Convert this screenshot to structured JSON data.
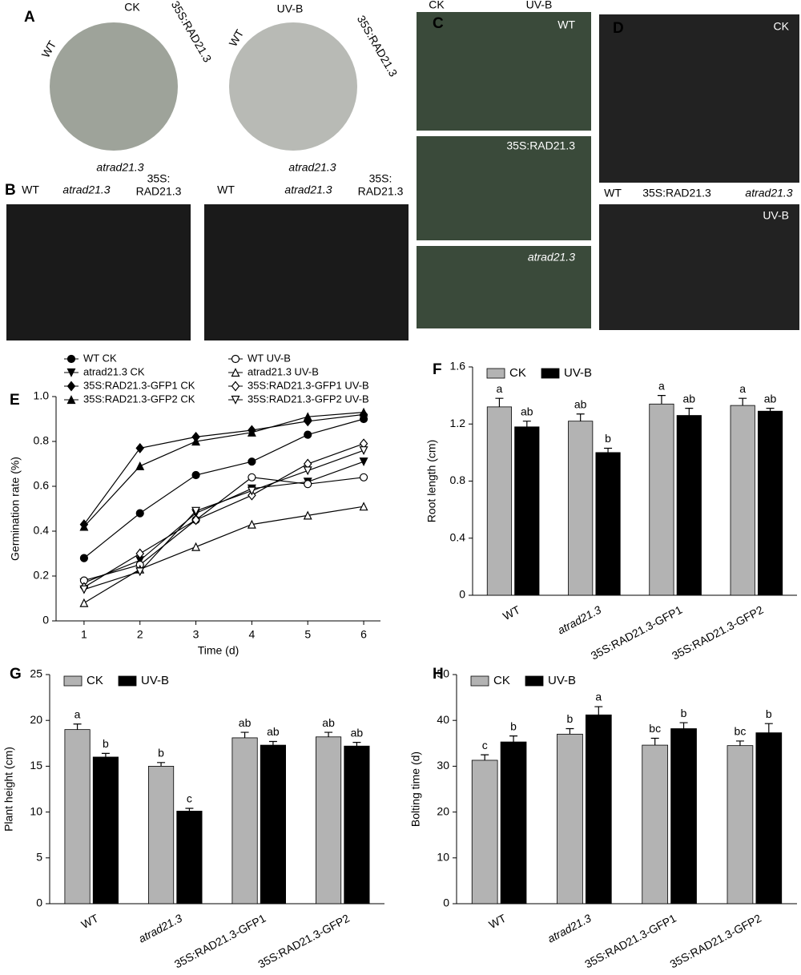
{
  "photo_panels": [
    {
      "label": "A",
      "texts": [
        "CK",
        "WT",
        "35S:RAD21.3",
        "atrad21.3",
        "UV-B",
        "WT",
        "35S:RAD21.3",
        "atrad21.3"
      ]
    },
    {
      "label": "B",
      "texts": [
        "WT",
        "atrad21.3",
        "35S:",
        "RAD21.3",
        "WT",
        "atrad21.3",
        "35S:",
        "RAD21.3"
      ]
    },
    {
      "label": "C",
      "texts": [
        "CK",
        "UV-B",
        "WT",
        "35S:RAD21.3",
        "atrad21.3"
      ]
    },
    {
      "label": "D",
      "texts": [
        "CK",
        "WT",
        "35S:RAD21.3",
        "atrad21.3",
        "UV-B"
      ]
    }
  ],
  "chart_data": [
    {
      "type": "line",
      "panel_label": "E",
      "x_label": "Time (d)",
      "y_label": "Germination rate (%)",
      "x": [
        1,
        2,
        3,
        4,
        5,
        6
      ],
      "xlim": [
        0.5,
        6.3
      ],
      "xticks": [
        1,
        2,
        3,
        4,
        5,
        6
      ],
      "ylim": [
        0,
        1
      ],
      "yticks": [
        0,
        0.2,
        0.4,
        0.6,
        0.8,
        {
          "value": 1,
          "label": "1.0"
        }
      ],
      "series": [
        {
          "name": "WT  CK",
          "color": "#000000",
          "marker": "circle",
          "filled": true,
          "values": [
            0.28,
            0.48,
            0.65,
            0.71,
            0.83,
            0.9
          ]
        },
        {
          "name": "atrad21.3 CK",
          "color": "#000000",
          "marker": "triangle-down",
          "filled": true,
          "values": [
            0.17,
            0.27,
            0.48,
            0.59,
            0.62,
            0.71
          ]
        },
        {
          "name": "35S:RAD21.3-GFP1 CK",
          "color": "#000000",
          "marker": "diamond",
          "filled": true,
          "values": [
            0.43,
            0.77,
            0.82,
            0.85,
            0.89,
            0.92
          ]
        },
        {
          "name": "35S:RAD21.3-GFP2 CK",
          "color": "#000000",
          "marker": "triangle-up",
          "filled": true,
          "values": [
            0.42,
            0.69,
            0.8,
            0.84,
            0.91,
            0.93
          ]
        },
        {
          "name": "WT   UV-B",
          "color": "#000000",
          "marker": "circle",
          "filled": false,
          "values": [
            0.18,
            0.25,
            0.45,
            0.64,
            0.61,
            0.64
          ]
        },
        {
          "name": "atrad21.3 UV-B",
          "color": "#000000",
          "marker": "triangle-up",
          "filled": false,
          "values": [
            0.08,
            0.23,
            0.33,
            0.43,
            0.47,
            0.51
          ]
        },
        {
          "name": "35S:RAD21.3-GFP1 UV-B",
          "color": "#000000",
          "marker": "diamond",
          "filled": false,
          "values": [
            0.15,
            0.3,
            0.45,
            0.56,
            0.7,
            0.79
          ]
        },
        {
          "name": "35S:RAD21.3-GFP2 UV-B",
          "color": "#000000",
          "marker": "triangle-down",
          "filled": false,
          "values": [
            0.14,
            0.22,
            0.49,
            0.58,
            0.67,
            0.76
          ]
        }
      ]
    },
    {
      "type": "bar",
      "panel_label": "F",
      "y_label": "Root  length (cm)",
      "categories": [
        "WT",
        "atrad21.3",
        "35S:RAD21.3-GFP1",
        "35S:RAD21.3-GFP2"
      ],
      "ylim": [
        0,
        1.6
      ],
      "yticks": [
        0,
        0.4,
        0.8,
        1.2,
        1.6
      ],
      "series": [
        {
          "name": "CK",
          "color": "#b3b3b3",
          "values": [
            1.32,
            1.22,
            1.34,
            1.33
          ],
          "errors": [
            0.06,
            0.05,
            0.06,
            0.05
          ],
          "labels": [
            "a",
            "ab",
            "a",
            "a"
          ]
        },
        {
          "name": "UV-B",
          "color": "#000000",
          "values": [
            1.18,
            1.0,
            1.26,
            1.29
          ],
          "errors": [
            0.04,
            0.03,
            0.05,
            0.02
          ],
          "labels": [
            "ab",
            "b",
            "ab",
            "ab"
          ]
        }
      ]
    },
    {
      "type": "bar",
      "panel_label": "G",
      "y_label": "Plant height (cm)",
      "categories": [
        "WT",
        "atrad21.3",
        "35S:RAD21.3-GFP1",
        "35S:RAD21.3-GFP2"
      ],
      "ylim": [
        0,
        25
      ],
      "yticks": [
        0,
        5,
        10,
        15,
        20,
        25
      ],
      "series": [
        {
          "name": "CK",
          "color": "#b3b3b3",
          "values": [
            19,
            15,
            18.1,
            18.2
          ],
          "errors": [
            0.6,
            0.4,
            0.6,
            0.5
          ],
          "labels": [
            "a",
            "b",
            "ab",
            "ab"
          ]
        },
        {
          "name": "UV-B",
          "color": "#000000",
          "values": [
            16,
            10.1,
            17.3,
            17.2
          ],
          "errors": [
            0.4,
            0.3,
            0.4,
            0.4
          ],
          "labels": [
            "b",
            "c",
            "ab",
            "ab"
          ]
        }
      ]
    },
    {
      "type": "bar",
      "panel_label": "H",
      "y_label": "Bolting time (d)",
      "categories": [
        "WT",
        "atrad21.3",
        "35S:RAD21.3-GFP1",
        "35S:RAD21.3-GFP2"
      ],
      "ylim": [
        0,
        50
      ],
      "yticks": [
        0,
        10,
        20,
        30,
        40,
        50
      ],
      "series": [
        {
          "name": "CK",
          "color": "#b3b3b3",
          "values": [
            31.3,
            37,
            34.6,
            34.5
          ],
          "errors": [
            1.2,
            1.2,
            1.5,
            1.0
          ],
          "labels": [
            "c",
            "b",
            "bc",
            "bc"
          ]
        },
        {
          "name": "UV-B",
          "color": "#000000",
          "values": [
            35.3,
            41.2,
            38.2,
            37.3
          ],
          "errors": [
            1.3,
            1.8,
            1.3,
            2.0
          ],
          "labels": [
            "b",
            "a",
            "b",
            "b"
          ]
        }
      ]
    }
  ]
}
